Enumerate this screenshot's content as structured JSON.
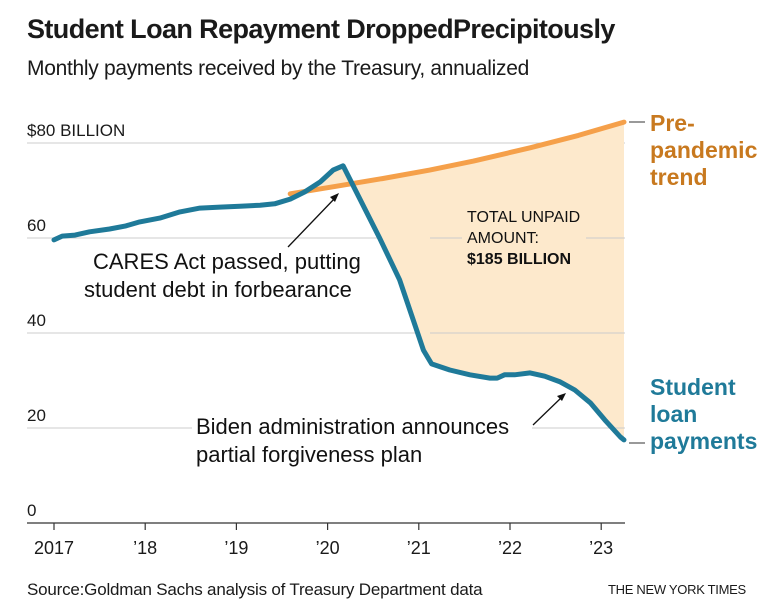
{
  "header": {
    "title": "Student Loan Repayment DroppedPrecipitously",
    "subtitle": "Monthly payments received by the Treasury, annualized"
  },
  "footer": {
    "source": "Source:Goldman Sachs analysis of Treasury Department data",
    "credit": "THE NEW YORK TIMES"
  },
  "colors": {
    "payments_line": "#1f7a99",
    "trend_line": "#f5a04a",
    "gap_fill": "#fde9cc",
    "trend_label": "#c8791f",
    "payments_label": "#1f7a99",
    "gridline": "#cccccc",
    "axis": "#333333"
  },
  "chart_data": {
    "type": "line",
    "title": "Student Loan Repayment DroppedPrecipitously",
    "subtitle": "Monthly payments received by the Treasury, annualized",
    "xlabel": "",
    "ylabel": "",
    "unit": "billion USD",
    "xlim": [
      2016.7,
      2023.28
    ],
    "ylim": [
      0,
      80
    ],
    "grid": true,
    "y_ticks": [
      {
        "value": 80,
        "label": "$80 BILLION"
      },
      {
        "value": 60,
        "label": "60"
      },
      {
        "value": 40,
        "label": "40"
      },
      {
        "value": 20,
        "label": "20"
      },
      {
        "value": 0,
        "label": "0"
      }
    ],
    "x_ticks": [
      {
        "value": 2017,
        "label": "2017"
      },
      {
        "value": 2018,
        "label": "’18"
      },
      {
        "value": 2019,
        "label": "’19"
      },
      {
        "value": 2020,
        "label": "’20"
      },
      {
        "value": 2021,
        "label": "’21"
      },
      {
        "value": 2022,
        "label": "’22"
      },
      {
        "value": 2023,
        "label": "’23"
      }
    ],
    "series": [
      {
        "name": "Student loan payments",
        "label_lines": [
          "Student",
          "loan",
          "payments"
        ],
        "x": [
          2017.0,
          2017.09,
          2017.23,
          2017.39,
          2017.61,
          2017.78,
          2017.94,
          2018.16,
          2018.38,
          2018.6,
          2018.82,
          2019.04,
          2019.26,
          2019.42,
          2019.59,
          2019.75,
          2019.92,
          2020.06,
          2020.17,
          2020.36,
          2020.57,
          2020.79,
          2020.94,
          2021.05,
          2021.14,
          2021.34,
          2021.56,
          2021.78,
          2021.86,
          2021.94,
          2022.05,
          2022.22,
          2022.38,
          2022.55,
          2022.71,
          2022.88,
          2023.04,
          2023.21,
          2023.25
        ],
        "values": [
          59.6,
          60.4,
          60.6,
          61.3,
          61.9,
          62.5,
          63.4,
          64.2,
          65.5,
          66.3,
          66.5,
          66.7,
          66.9,
          67.2,
          68.2,
          69.7,
          71.8,
          74.3,
          75.2,
          68.0,
          60.0,
          51.2,
          42.7,
          36.4,
          33.5,
          32.2,
          31.2,
          30.5,
          30.5,
          31.2,
          31.2,
          31.6,
          30.9,
          29.7,
          28.0,
          25.3,
          21.7,
          18.1,
          17.5
        ]
      },
      {
        "name": "Pre-pandemic trend",
        "label_lines": [
          "Pre-",
          "pandemic",
          "trend"
        ],
        "x": [
          2019.59,
          2020.1,
          2020.6,
          2021.12,
          2021.6,
          2022.22,
          2022.75,
          2023.25
        ],
        "values": [
          69.3,
          70.9,
          72.5,
          74.3,
          76.2,
          79.0,
          81.6,
          84.4
        ]
      }
    ],
    "annotations": [
      {
        "text_lines": [
          "CARES Act passed, putting",
          "student debt in forbearance"
        ],
        "points_to": {
          "x": 2020.05,
          "value": 70.0
        }
      },
      {
        "text_lines": [
          "Biden administration announces",
          "partial forgiveness plan"
        ],
        "points_to": {
          "x": 2022.65,
          "value": 29.0
        }
      },
      {
        "text_lines": [
          "TOTAL UNPAID",
          "AMOUNT:"
        ],
        "emphasis": "$185 BILLION"
      }
    ],
    "legend": "direct-labels-right"
  }
}
